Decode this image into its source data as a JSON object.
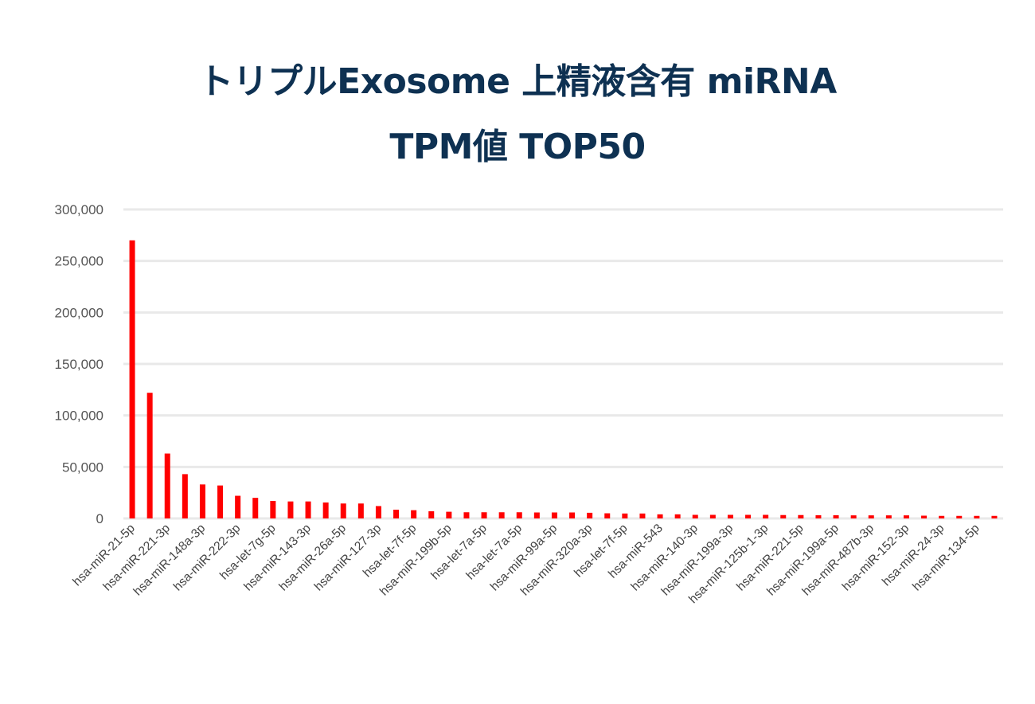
{
  "chart_data": {
    "type": "bar",
    "title": [
      "トリプルExosome 上精液含有 miRNA",
      "TPM値 TOP50"
    ],
    "xlabel": "",
    "ylabel": "",
    "ylim": [
      0,
      300000
    ],
    "yticks": [
      0,
      50000,
      100000,
      150000,
      200000,
      250000,
      300000
    ],
    "ytick_labels": [
      "0",
      "50,000",
      "100,000",
      "150,000",
      "200,000",
      "250,000",
      "300,000"
    ],
    "grid": true,
    "bar_color": "#ff0000",
    "categories": [
      "hsa-miR-21-5p",
      "",
      "hsa-miR-221-3p",
      "",
      "hsa-miR-148a-3p",
      "",
      "hsa-miR-222-3p",
      "",
      "hsa-let-7g-5p",
      "",
      "hsa-miR-143-3p",
      "",
      "hsa-miR-26a-5p",
      "",
      "hsa-miR-127-3p",
      "",
      "hsa-let-7f-5p",
      "",
      "hsa-miR-199b-5p",
      "",
      "hsa-let-7a-5p",
      "",
      "hsa-let-7a-5p",
      "",
      "hsa-miR-99a-5p",
      "",
      "hsa-miR-320a-3p",
      "",
      "hsa-let-7f-5p",
      "",
      "hsa-miR-543",
      "",
      "hsa-miR-140-3p",
      "",
      "hsa-miR-199a-3p",
      "",
      "hsa-miR-125b-1-3p",
      "",
      "hsa-miR-221-5p",
      "",
      "hsa-miR-199a-5p",
      "",
      "hsa-miR-487b-3p",
      "",
      "hsa-miR-152-3p",
      "",
      "hsa-miR-24-3p",
      "",
      "hsa-miR-134-5p",
      ""
    ],
    "values": [
      270000,
      122000,
      63000,
      43000,
      33000,
      32000,
      22000,
      20000,
      17000,
      16500,
      16500,
      15500,
      14500,
      14500,
      12000,
      8500,
      8000,
      7000,
      6500,
      6000,
      6000,
      6000,
      6000,
      5800,
      5800,
      5800,
      5500,
      5000,
      4800,
      4800,
      4000,
      4000,
      3500,
      3500,
      3500,
      3500,
      3500,
      3300,
      3300,
      3100,
      3100,
      3000,
      3000,
      3000,
      3000,
      2700,
      2500,
      2500,
      2500,
      2500
    ]
  }
}
